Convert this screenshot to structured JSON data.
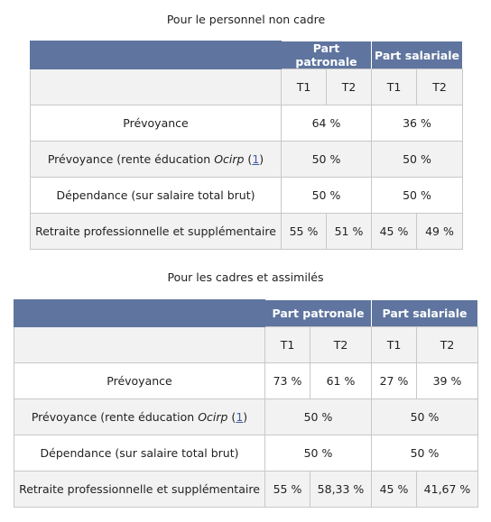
{
  "tables": [
    {
      "caption": "Pour le personnel non cadre",
      "headers": {
        "employer": "Part patronale",
        "employee": "Part salariale"
      },
      "subheaders": [
        "T1",
        "T2",
        "T1",
        "T2"
      ],
      "rows": [
        {
          "label": "Prévoyance",
          "emp": "64 %",
          "sal": "36 %"
        },
        {
          "label_before": "Prévoyance (rente éducation ",
          "label_italic": "Ocirp",
          "label_ref_open": " (",
          "label_ref": "1",
          "label_ref_close": ")",
          "emp": "50 %",
          "sal": "50 %"
        },
        {
          "label": "Dépendance (sur salaire total brut)",
          "emp": "50 %",
          "sal": "50 %"
        },
        {
          "label": "Retraite professionnelle et supplémentaire",
          "emp_t1": "55 %",
          "emp_t2": "51 %",
          "sal_t1": "45 %",
          "sal_t2": "49 %"
        }
      ]
    },
    {
      "caption": "Pour les cadres et assimilés",
      "headers": {
        "employer": "Part patronale",
        "employee": "Part salariale"
      },
      "subheaders": [
        "T1",
        "T2",
        "T1",
        "T2"
      ],
      "rows": [
        {
          "label": "Prévoyance",
          "emp_t1": "73 %",
          "emp_t2": "61 %",
          "sal_t1": "27 %",
          "sal_t2": "39 %"
        },
        {
          "label_before": "Prévoyance (rente éducation ",
          "label_italic": "Ocirp",
          "label_ref_open": " (",
          "label_ref": "1",
          "label_ref_close": ")",
          "emp": "50 %",
          "sal": "50 %"
        },
        {
          "label": "Dépendance (sur salaire total brut)",
          "emp": "50 %",
          "sal": "50 %"
        },
        {
          "label": "Retraite professionnelle et supplémentaire",
          "emp_t1": "55 %",
          "emp_t2": "58,33 %",
          "sal_t1": "45 %",
          "sal_t2": "41,67 %"
        }
      ]
    }
  ]
}
